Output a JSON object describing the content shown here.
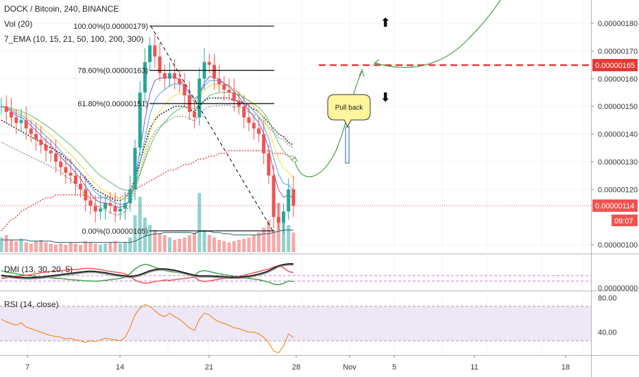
{
  "header": {
    "title": "DOCK / Bitcoin, 240, BINANCE",
    "vol_label": "Vol (20)",
    "ema_label": "7_EMA (10, 15, 21, 50, 100, 200, 300)"
  },
  "indicators": {
    "dmi_label": "DMI (13, 30, 20, 5)",
    "rsi_label": "RSI (14, close)"
  },
  "annotations": {
    "pullback_text": "Pull back",
    "arrow_up": "⬆",
    "arrow_down": "⬇"
  },
  "colors": {
    "up": "#26a69a",
    "down": "#ef5350",
    "level_line": "#e53935",
    "projection": "#43a047",
    "callout_fill": "#fff59d",
    "rsi_band": "#ede7f6",
    "rsi_line": "#f57c00"
  },
  "chart_data": {
    "type": "line",
    "title": "DOCK / Bitcoin, 240, BINANCE",
    "x_tick_labels": [
      "7",
      "14",
      "21",
      "28",
      "Nov",
      "5",
      "11",
      "18"
    ],
    "y_tick_labels": [
      "0.00000180",
      "0.00000170",
      "0.00000160",
      "0.00000150",
      "0.00000140",
      "0.00000130",
      "0.00000120",
      "0.00000100"
    ],
    "ylim": [
      9.5e-07,
      1.85e-06
    ],
    "price_markers": {
      "level": "0.00000165",
      "last": "0.00000114",
      "countdown": "09:07"
    },
    "fibonacci": [
      {
        "label": "100.00%(0.00000179)",
        "value": 1.79e-06
      },
      {
        "label": "78.60%(0.00000163)",
        "value": 1.63e-06
      },
      {
        "label": "61.80%(0.00000151)",
        "value": 1.51e-06
      },
      {
        "label": "0.00%(0.00000105)",
        "value": 1.05e-06
      }
    ],
    "series": [
      {
        "values": [
          1.5e-06,
          1.48e-06,
          1.46e-06,
          1.44e-06,
          1.45e-06,
          1.42e-06,
          1.4e-06,
          1.38e-06,
          1.36e-06,
          1.34e-06,
          1.33e-06,
          1.3e-06,
          1.28e-06,
          1.26e-06,
          1.25e-06,
          1.22e-06,
          1.2e-06,
          1.16e-06,
          1.14e-06,
          1.12e-06,
          1.13e-06,
          1.15e-06,
          1.14e-06,
          1.12e-06,
          1.13e-06,
          1.15e-06,
          1.2e-06,
          1.35e-06,
          1.55e-06,
          1.66e-06,
          1.72e-06,
          1.68e-06,
          1.62e-06,
          1.6e-06,
          1.62e-06,
          1.6e-06,
          1.58e-06,
          1.54e-06,
          1.48e-06,
          1.46e-06,
          1.6e-06,
          1.66e-06,
          1.65e-06,
          1.6e-06,
          1.58e-06,
          1.56e-06,
          1.55e-06,
          1.52e-06,
          1.5e-06,
          1.46e-06,
          1.44e-06,
          1.42e-06,
          1.4e-06,
          1.33e-06,
          1.25e-06,
          1.1e-06,
          1.08e-06,
          1.12e-06,
          1.2e-06,
          1.14e-06
        ]
      },
      {
        "values": [
          1.05e-06,
          1.07e-06,
          1.09e-06,
          1.1e-06,
          1.12e-06,
          1.13e-06,
          1.14e-06,
          1.15e-06,
          1.16e-06,
          1.17e-06,
          1.17e-06,
          1.18e-06,
          1.18e-06,
          1.18e-06,
          1.18e-06,
          1.18e-06,
          1.18e-06,
          1.18e-06,
          1.17e-06,
          1.17e-06,
          1.17e-06,
          1.17e-06,
          1.17e-06,
          1.17e-06,
          1.17e-06,
          1.18e-06,
          1.19e-06,
          1.2e-06,
          1.21e-06,
          1.22e-06,
          1.23e-06,
          1.24e-06,
          1.25e-06,
          1.26e-06,
          1.27e-06,
          1.27e-06,
          1.28e-06,
          1.29e-06,
          1.29e-06,
          1.3e-06,
          1.31e-06,
          1.31e-06,
          1.32e-06,
          1.32e-06,
          1.33e-06,
          1.33e-06,
          1.34e-06,
          1.34e-06,
          1.34e-06,
          1.34e-06,
          1.34e-06,
          1.34e-06,
          1.34e-06,
          1.34e-06,
          1.34e-06,
          1.33e-06,
          1.33e-06,
          1.33e-06,
          1.32e-06,
          1.32e-06
        ]
      },
      {
        "values": [
          1.45e-06,
          1.44e-06,
          1.43e-06,
          1.42e-06,
          1.41e-06,
          1.4e-06,
          1.39e-06,
          1.38e-06,
          1.37e-06,
          1.36e-06,
          1.35e-06,
          1.34e-06,
          1.33e-06,
          1.31e-06,
          1.3e-06,
          1.28e-06,
          1.26e-06,
          1.24e-06,
          1.22e-06,
          1.2e-06,
          1.19e-06,
          1.18e-06,
          1.17e-06,
          1.16e-06,
          1.16e-06,
          1.17e-06,
          1.19e-06,
          1.24e-06,
          1.3e-06,
          1.36e-06,
          1.42e-06,
          1.45e-06,
          1.47e-06,
          1.48e-06,
          1.49e-06,
          1.5e-06,
          1.5e-06,
          1.5e-06,
          1.49e-06,
          1.48e-06,
          1.5e-06,
          1.52e-06,
          1.53e-06,
          1.53e-06,
          1.53e-06,
          1.53e-06,
          1.53e-06,
          1.52e-06,
          1.52e-06,
          1.51e-06,
          1.5e-06,
          1.49e-06,
          1.48e-06,
          1.46e-06,
          1.44e-06,
          1.42e-06,
          1.4e-06,
          1.39e-06,
          1.37e-06,
          1.36e-06
        ]
      }
    ],
    "volume": [
      12,
      14,
      10,
      9,
      11,
      8,
      7,
      9,
      10,
      8,
      7,
      6,
      7,
      6,
      8,
      7,
      6,
      9,
      8,
      7,
      6,
      7,
      8,
      9,
      7,
      8,
      12,
      30,
      45,
      28,
      22,
      18,
      15,
      14,
      12,
      10,
      11,
      12,
      14,
      16,
      48,
      18,
      14,
      12,
      10,
      9,
      8,
      9,
      10,
      11,
      12,
      14,
      16,
      20,
      26,
      18,
      40,
      30,
      22,
      16
    ],
    "volume_ma": [
      10,
      10,
      10,
      10,
      10,
      10,
      9,
      9,
      9,
      9,
      9,
      8,
      8,
      8,
      8,
      8,
      8,
      8,
      8,
      8,
      8,
      8,
      8,
      8,
      8,
      8,
      8,
      9,
      11,
      13,
      14,
      15,
      15,
      16,
      16,
      16,
      16,
      16,
      16,
      15,
      17,
      17,
      17,
      16,
      16,
      15,
      15,
      14,
      14,
      14,
      14,
      14,
      14,
      15,
      15,
      16,
      17,
      18,
      18,
      18
    ],
    "rsi": [
      55,
      52,
      50,
      48,
      51,
      46,
      44,
      42,
      40,
      38,
      36,
      35,
      34,
      32,
      33,
      31,
      30,
      28,
      30,
      29,
      31,
      33,
      32,
      31,
      30,
      34,
      45,
      60,
      68,
      72,
      70,
      65,
      60,
      58,
      62,
      58,
      55,
      50,
      45,
      42,
      55,
      62,
      60,
      55,
      52,
      50,
      48,
      45,
      44,
      42,
      40,
      40,
      38,
      34,
      28,
      18,
      16,
      24,
      38,
      34
    ],
    "rsi_ylim": [
      15,
      85
    ],
    "rsi_ticks": [
      "80.00",
      "40.00"
    ],
    "dmi_ticks": [
      "0.00000000"
    ],
    "dmi_plus": [
      55,
      50,
      48,
      45,
      42,
      40,
      38,
      36,
      35,
      34,
      32,
      30,
      30,
      28,
      26,
      25,
      24,
      22,
      22,
      21,
      22,
      24,
      26,
      28,
      30,
      34,
      45,
      60,
      70,
      75,
      72,
      65,
      60,
      55,
      52,
      50,
      48,
      45,
      42,
      40,
      52,
      55,
      52,
      48,
      45,
      42,
      40,
      36,
      34,
      32,
      30,
      28,
      26,
      22,
      18,
      12,
      10,
      14,
      22,
      20
    ],
    "dmi_minus": [
      30,
      32,
      34,
      36,
      38,
      40,
      42,
      45,
      48,
      50,
      52,
      54,
      55,
      56,
      58,
      58,
      60,
      62,
      62,
      60,
      58,
      55,
      52,
      50,
      48,
      45,
      35,
      25,
      18,
      15,
      16,
      20,
      22,
      25,
      24,
      26,
      28,
      30,
      32,
      34,
      24,
      20,
      22,
      25,
      28,
      30,
      32,
      34,
      36,
      40,
      44,
      48,
      52,
      56,
      60,
      66,
      70,
      64,
      52,
      48
    ],
    "adx": [
      40,
      38,
      36,
      34,
      33,
      32,
      32,
      33,
      34,
      36,
      38,
      40,
      42,
      44,
      46,
      48,
      50,
      52,
      53,
      52,
      50,
      48,
      45,
      42,
      40,
      38,
      36,
      38,
      42,
      48,
      54,
      58,
      60,
      60,
      58,
      56,
      52,
      48,
      44,
      40,
      38,
      38,
      38,
      37,
      36,
      35,
      34,
      34,
      34,
      35,
      37,
      40,
      44,
      48,
      54,
      62,
      70,
      74,
      76,
      76
    ]
  }
}
